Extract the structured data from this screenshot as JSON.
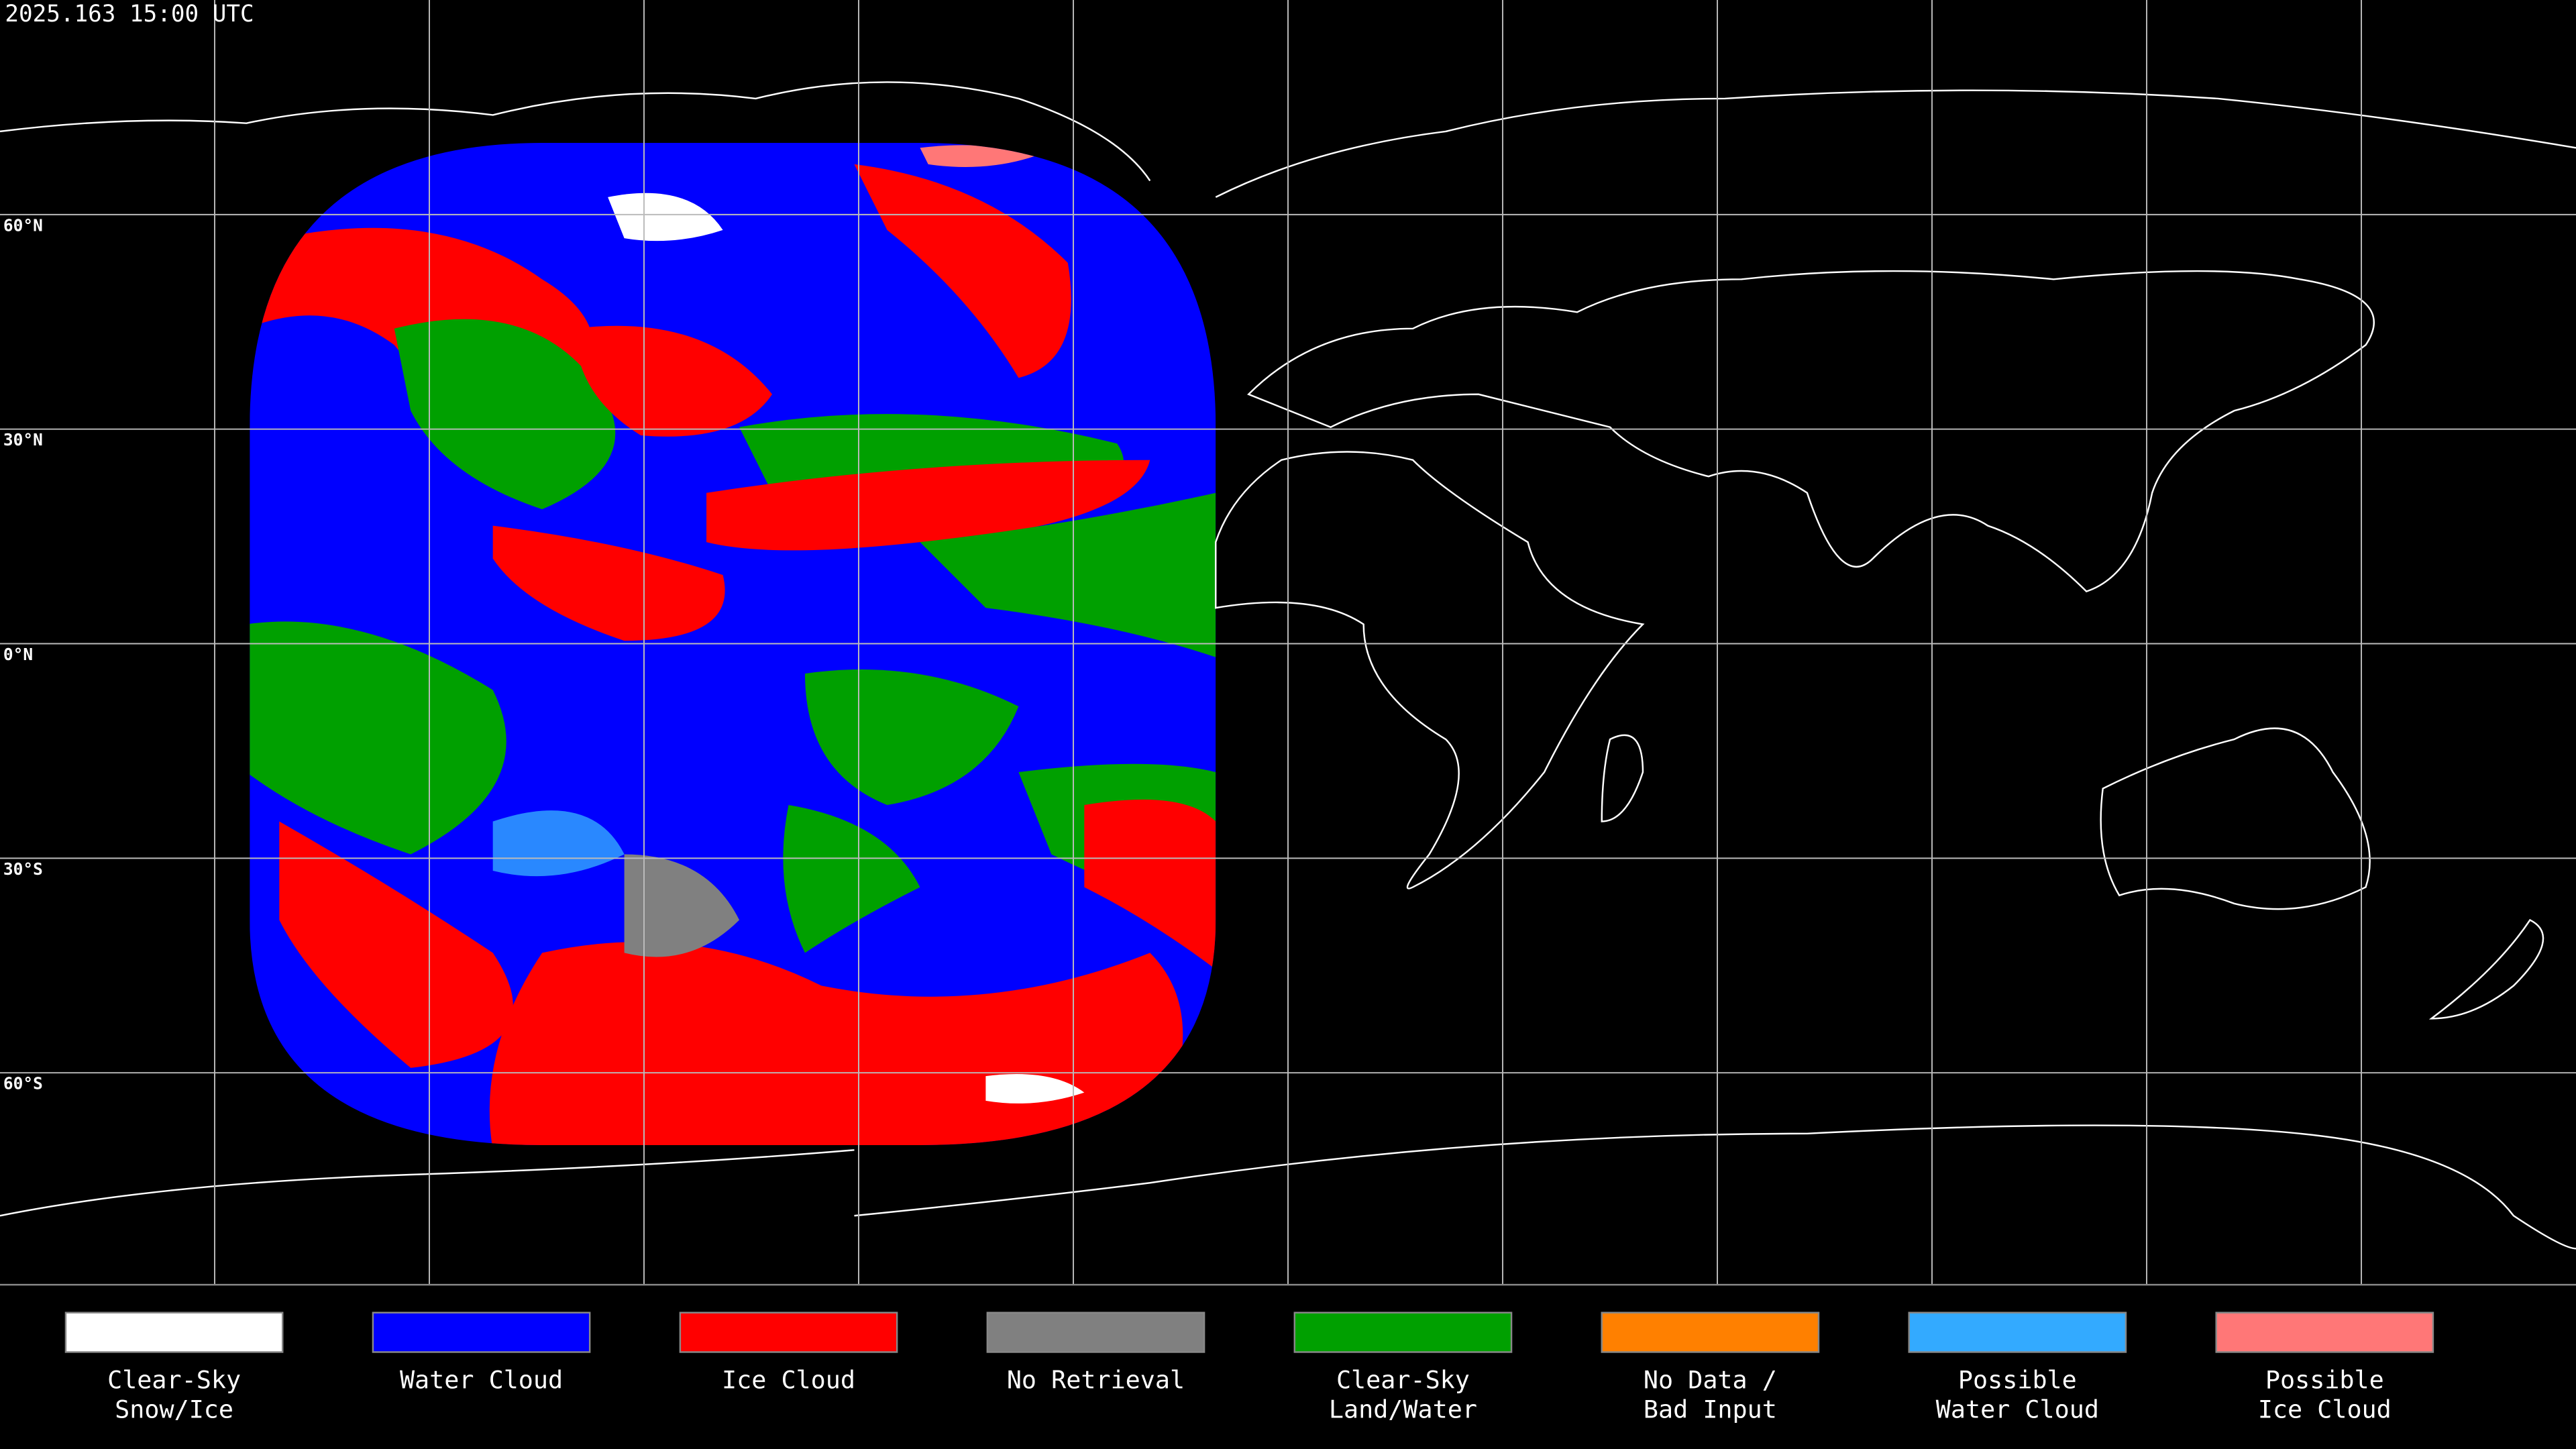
{
  "header": {
    "timestamp": "2025.163 15:00 UTC"
  },
  "map": {
    "latitude_labels": [
      "60°N",
      "30°N",
      "0°N",
      "30°S",
      "60°S"
    ]
  },
  "legend": {
    "items": [
      {
        "label_lines": [
          "Clear-Sky",
          "Snow/Ice"
        ],
        "color": "#ffffff"
      },
      {
        "label_lines": [
          "Water Cloud"
        ],
        "color": "#0000ff"
      },
      {
        "label_lines": [
          "Ice Cloud"
        ],
        "color": "#ff0000"
      },
      {
        "label_lines": [
          "No Retrieval"
        ],
        "color": "#808080"
      },
      {
        "label_lines": [
          "Clear-Sky",
          "Land/Water"
        ],
        "color": "#00a000"
      },
      {
        "label_lines": [
          "No Data /",
          "Bad Input"
        ],
        "color": "#ff8000"
      },
      {
        "label_lines": [
          "Possible",
          "Water Cloud"
        ],
        "color": "#33aaff"
      },
      {
        "label_lines": [
          "Possible",
          "Ice Cloud"
        ],
        "color": "#ff7777"
      }
    ]
  }
}
